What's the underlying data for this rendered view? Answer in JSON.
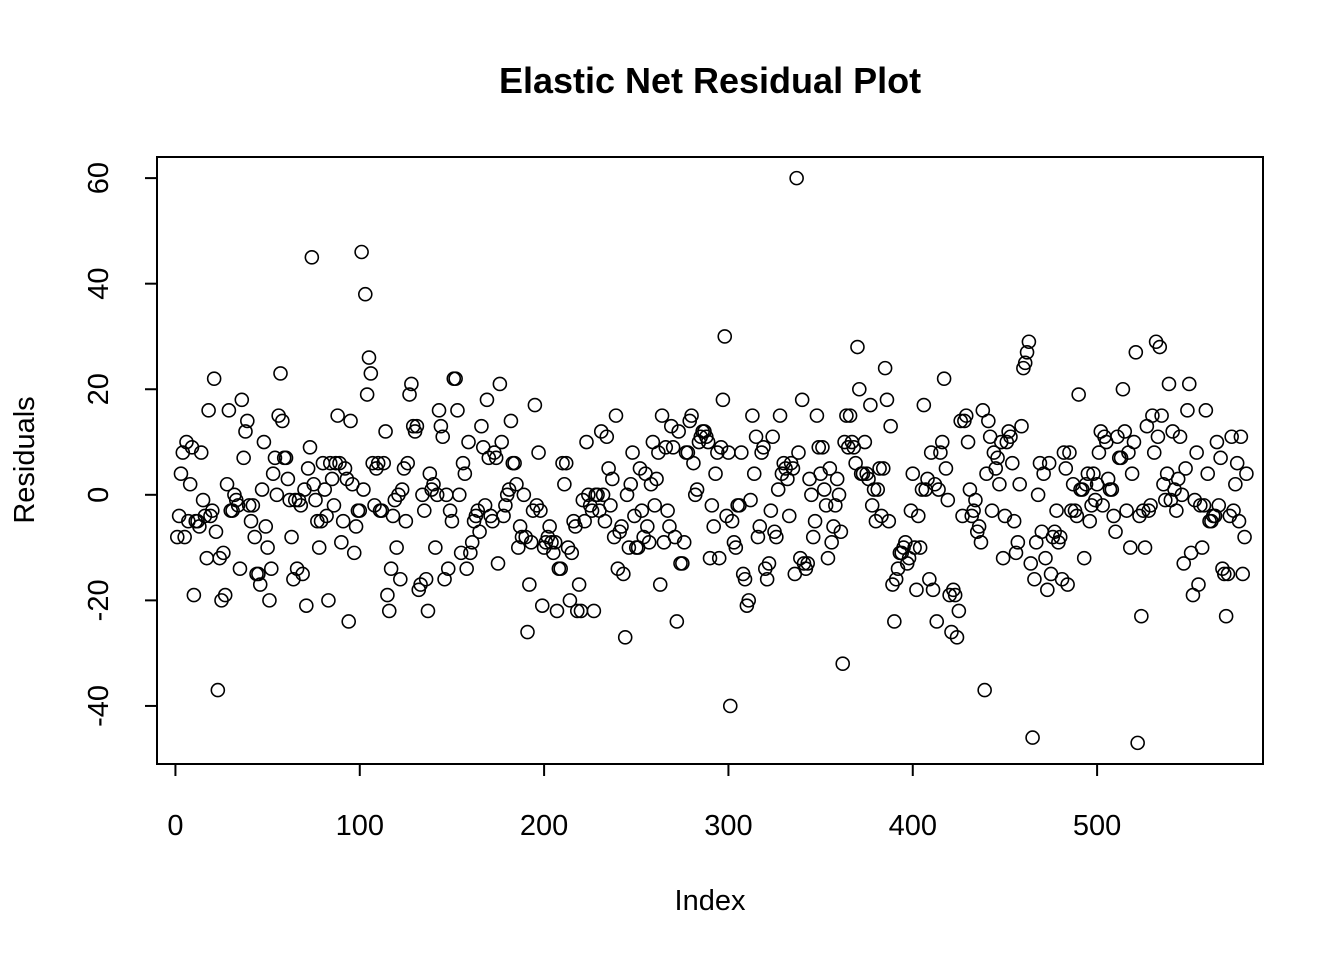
{
  "chart_data": {
    "type": "scatter",
    "title": "Elastic Net Residual Plot",
    "xlabel": "Index",
    "ylabel": "Residuals",
    "xlim": [
      -10,
      590
    ],
    "ylim": [
      -51,
      64
    ],
    "grid": false,
    "x_ticks": [
      0,
      100,
      200,
      300,
      400,
      500
    ],
    "x_tick_labels": [
      "0",
      "100",
      "200",
      "300",
      "400",
      "500"
    ],
    "y_ticks": [
      -40,
      -20,
      0,
      20,
      40,
      60
    ],
    "y_tick_labels": [
      "-40",
      "-20",
      "0",
      "20",
      "40",
      "60"
    ],
    "y": [
      -8,
      -4,
      4,
      8,
      -8,
      10,
      -5,
      2,
      9,
      -19,
      -5,
      -5,
      -6,
      8,
      -1,
      -4,
      -12,
      16,
      -4,
      -3,
      22,
      -7,
      -37,
      -12,
      -20,
      -11,
      -19,
      2,
      16,
      -3,
      -3,
      0,
      -1,
      -2,
      -14,
      18,
      7,
      12,
      14,
      -2,
      -5,
      -2,
      -8,
      -15,
      -15,
      -17,
      1,
      10,
      -6,
      -10,
      -20,
      -14,
      4,
      7,
      0,
      15,
      23,
      14,
      7,
      7,
      3,
      -1,
      -8,
      -16,
      -1,
      -14,
      -1,
      -2,
      -15,
      1,
      -21,
      5,
      9,
      45,
      2,
      -1,
      -5,
      -10,
      -5,
      6,
      1,
      -4,
      -20,
      6,
      3,
      -2,
      6,
      15,
      6,
      -9,
      -5,
      5,
      3,
      -24,
      14,
      2,
      -11,
      -6,
      -3,
      -3,
      46,
      1,
      38,
      19,
      26,
      23,
      6,
      -2,
      5,
      6,
      -3,
      -3,
      6,
      12,
      -19,
      -22,
      -14,
      -4,
      -1,
      -10,
      0,
      -16,
      1,
      5,
      -5,
      6,
      19,
      21,
      13,
      12,
      13,
      -18,
      -17,
      0,
      -3,
      -16,
      -22,
      4,
      1,
      2,
      -10,
      0,
      16,
      13,
      11,
      -16,
      0,
      -14,
      -3,
      -5,
      22,
      22,
      16,
      0,
      -11,
      6,
      4,
      -14,
      10,
      -11,
      -9,
      -5,
      -4,
      -3,
      -7,
      13,
      9,
      -2,
      18,
      7,
      -4,
      -5,
      8,
      7,
      -13,
      21,
      10,
      -4,
      -2,
      0,
      1,
      14,
      6,
      6,
      2,
      -10,
      -6,
      -8,
      0,
      -8,
      -26,
      -17,
      -9,
      -3,
      17,
      -2,
      8,
      -3,
      -21,
      -10,
      -9,
      -8,
      -6,
      -9,
      -11,
      -9,
      -22,
      -14,
      -14,
      6,
      2,
      6,
      -10,
      -20,
      -11,
      -5,
      -6,
      -22,
      -17,
      -22,
      -1,
      -5,
      10,
      0,
      -2,
      -3,
      -22,
      0,
      0,
      -3,
      12,
      0,
      -5,
      11,
      5,
      -2,
      3,
      -8,
      15,
      -14,
      -7,
      -6,
      -15,
      -27,
      0,
      -10,
      2,
      8,
      -4,
      -10,
      -10,
      5,
      -3,
      -8,
      4,
      -6,
      -9,
      2,
      10,
      -2,
      3,
      8,
      -17,
      15,
      -9,
      9,
      -3,
      -6,
      13,
      9,
      -8,
      -24,
      12,
      -13,
      -13,
      -9,
      8,
      8,
      14,
      15,
      6,
      0,
      1,
      10,
      11,
      12,
      12,
      11,
      10,
      -12,
      -2,
      -6,
      4,
      8,
      -12,
      9,
      18,
      30,
      -4,
      8,
      -40,
      -5,
      -9,
      -10,
      -2,
      -2,
      8,
      -15,
      -16,
      -21,
      -20,
      -1,
      15,
      4,
      11,
      -8,
      -6,
      8,
      9,
      -14,
      -16,
      -13,
      -3,
      11,
      -7,
      -8,
      1,
      15,
      4,
      6,
      5,
      3,
      -4,
      6,
      5,
      -15,
      60,
      8,
      -12,
      18,
      -13,
      -14,
      -13,
      3,
      0,
      -8,
      -5,
      15,
      9,
      4,
      9,
      1,
      -2,
      -12,
      5,
      -9,
      -6,
      -2,
      3,
      0,
      -7,
      -32,
      10,
      15,
      9,
      15,
      10,
      9,
      6,
      28,
      20,
      4,
      4,
      10,
      4,
      3,
      17,
      -2,
      1,
      -5,
      1,
      5,
      -4,
      5,
      24,
      18,
      -5,
      13,
      -17,
      -24,
      -16,
      -14,
      -11,
      -11,
      -10,
      -9,
      -13,
      -12,
      -3,
      4,
      -10,
      -18,
      -4,
      -10,
      1,
      17,
      1,
      3,
      -16,
      8,
      -18,
      2,
      -24,
      1,
      8,
      10,
      22,
      5,
      -1,
      -19,
      -26,
      -18,
      -19,
      -27,
      -22,
      14,
      -4,
      14,
      15,
      10,
      1,
      -4,
      -3,
      -1,
      -7,
      -6,
      -9,
      16,
      -37,
      4,
      14,
      11,
      -3,
      8,
      5,
      7,
      2,
      10,
      -12,
      -4,
      10,
      12,
      11,
      6,
      -5,
      -11,
      -9,
      2,
      13,
      24,
      25,
      27,
      29,
      -13,
      -46,
      -16,
      -9,
      0,
      6,
      -7,
      4,
      -12,
      -18,
      6,
      -15,
      -8,
      -7,
      -3,
      -9,
      -8,
      -16,
      8,
      5,
      -17,
      8,
      -3,
      2,
      -3,
      -4,
      19,
      1,
      1,
      -12,
      2,
      4,
      -5,
      -2,
      4,
      -1,
      2,
      8,
      12,
      -2,
      11,
      10,
      3,
      1,
      1,
      -4,
      -7,
      11,
      7,
      7,
      20,
      12,
      -3,
      8,
      -10,
      4,
      10,
      27,
      -47,
      -4,
      -23,
      -3,
      -10,
      13,
      -3,
      -2,
      15,
      8,
      29,
      11,
      28,
      15,
      2,
      -1,
      4,
      21,
      -1,
      12,
      1,
      -3,
      3,
      11,
      0,
      -13,
      5,
      16,
      21,
      -11,
      -19,
      -1,
      8,
      -17,
      -2,
      -10,
      -2,
      16,
      4,
      -5,
      -5,
      -4,
      -4,
      10,
      -2,
      7,
      -14,
      -15,
      -23,
      -15,
      -4,
      11,
      -3,
      2,
      6,
      -5,
      11,
      -15,
      -8,
      4
    ]
  }
}
